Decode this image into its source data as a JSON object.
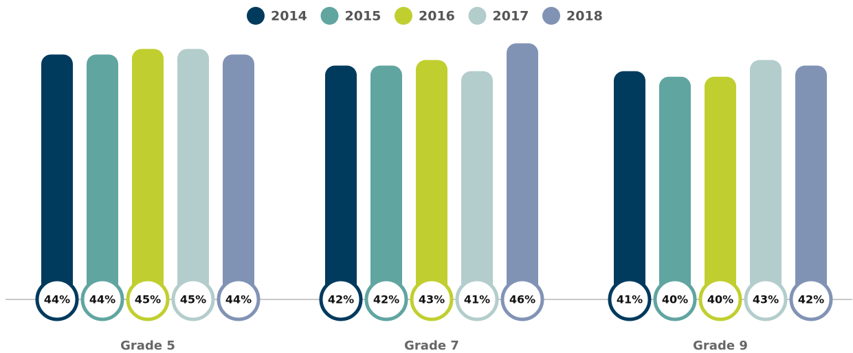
{
  "chart_data": {
    "type": "bar",
    "categories": [
      "Grade 5",
      "Grade 7",
      "Grade 9"
    ],
    "series": [
      {
        "name": "2014",
        "color": "#003a5d",
        "values": [
          44,
          42,
          41
        ],
        "value_labels": [
          "44%",
          "42%",
          "41%"
        ]
      },
      {
        "name": "2015",
        "color": "#60a5a0",
        "values": [
          44,
          42,
          40
        ],
        "value_labels": [
          "44%",
          "42%",
          "40%"
        ]
      },
      {
        "name": "2016",
        "color": "#c0cf2f",
        "values": [
          45,
          43,
          40
        ],
        "value_labels": [
          "45%",
          "43%",
          "40%"
        ]
      },
      {
        "name": "2017",
        "color": "#b3cdcc",
        "values": [
          45,
          41,
          43
        ],
        "value_labels": [
          "45%",
          "41%",
          "43%"
        ]
      },
      {
        "name": "2018",
        "color": "#8193b5",
        "values": [
          44,
          46,
          42
        ],
        "value_labels": [
          "44%",
          "46%",
          "42%"
        ]
      }
    ],
    "ylim": [
      0,
      47
    ],
    "legend": "top"
  }
}
